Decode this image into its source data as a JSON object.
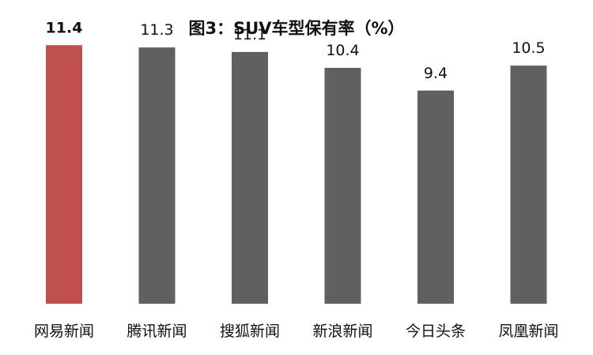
{
  "chart_data": {
    "type": "bar",
    "title": "图3：SUV车型保有率（%）",
    "xlabel": "",
    "ylabel": "",
    "categories": [
      "网易新闻",
      "腾讯新闻",
      "搜狐新闻",
      "新浪新闻",
      "今日头条",
      "凤凰新闻"
    ],
    "values": [
      11.4,
      11.3,
      11.1,
      10.4,
      9.4,
      10.5
    ],
    "data_labels": [
      "11.4",
      "11.3",
      "11.1",
      "10.4",
      "9.4",
      "10.5"
    ],
    "ylim": [
      0,
      12
    ],
    "grid": false,
    "legend": "none",
    "highlight_index": 0,
    "colors": {
      "highlight": "#C0504D",
      "default": "#606060",
      "label": "#111111"
    }
  }
}
